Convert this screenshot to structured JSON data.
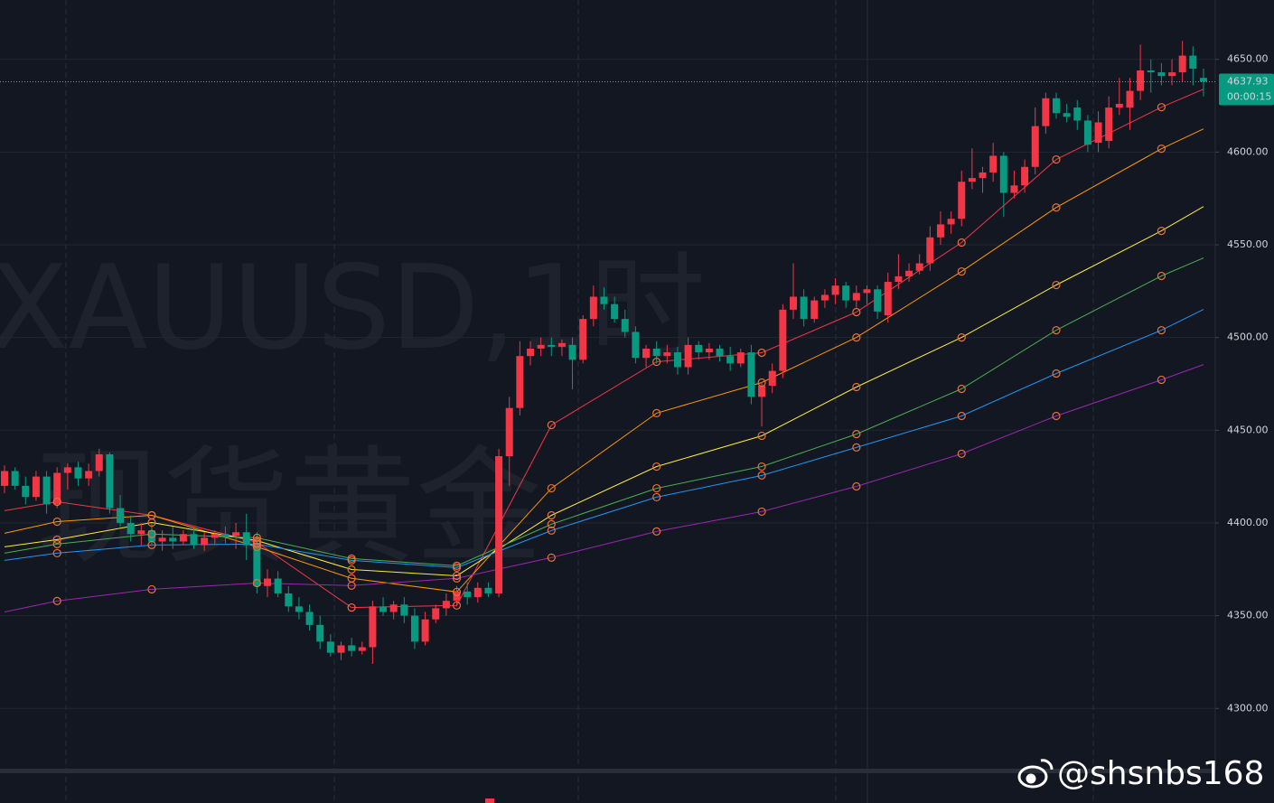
{
  "chart_data": {
    "type": "candlestick",
    "watermark": [
      "XAUUSD,1时",
      "现货黄金"
    ],
    "up_color": "#f23645",
    "down_color": "#089981",
    "marker_color": "#e8703a",
    "ylim": [
      4267,
      4682
    ],
    "yticks": [
      {
        "value": 4650,
        "label": "4650.00"
      },
      {
        "value": 4600,
        "label": "4600.00"
      },
      {
        "value": 4550,
        "label": "4550.00"
      },
      {
        "value": 4500,
        "label": "4500.00"
      },
      {
        "value": 4450,
        "label": "4450.00"
      },
      {
        "value": 4400,
        "label": "4400.00"
      },
      {
        "value": 4350,
        "label": "4350.00"
      },
      {
        "value": 4300,
        "label": "4300.00"
      }
    ],
    "grid": true,
    "last_price": 4637.93,
    "countdown": "00:00:15",
    "open": [
      4420,
      4428,
      4420,
      4414,
      4425,
      4410,
      4427,
      4430,
      4424,
      4428,
      4437,
      4408,
      4400,
      4394,
      4396,
      4390,
      4392,
      4390,
      4394,
      4388,
      4392,
      4394,
      4393,
      4395,
      4388,
      4366,
      4370,
      4362,
      4355,
      4352,
      4345,
      4336,
      4330,
      4334,
      4331,
      4333,
      4355,
      4352,
      4356,
      4350,
      4336,
      4348,
      4354,
      4358,
      4363,
      4360,
      4365,
      4362,
      4436,
      4462,
      4490,
      4494,
      4496,
      4495,
      4496,
      4488,
      4510,
      4522,
      4518,
      4510,
      4503,
      4489,
      4494,
      4490,
      4492,
      4484,
      4496,
      4492,
      4494,
      4490,
      4486,
      4492,
      4468,
      4474,
      4482,
      4515,
      4522,
      4510,
      4520,
      4523,
      4528,
      4520,
      4524,
      4526,
      4512,
      4530,
      4533,
      4536,
      4540,
      4554,
      4561,
      4564,
      4584,
      4586,
      4589,
      4598,
      4578,
      4582,
      4592,
      4614,
      4629,
      4621,
      4624,
      4617,
      4605,
      4606,
      4624,
      4624,
      4633,
      4644,
      4643,
      4641,
      4643,
      4652,
      4640
    ],
    "high": [
      4431,
      4430,
      4425,
      4428,
      4428,
      4430,
      4432,
      4433,
      4432,
      4440,
      4438,
      4415,
      4404,
      4400,
      4400,
      4396,
      4398,
      4396,
      4397,
      4395,
      4396,
      4398,
      4400,
      4405,
      4395,
      4375,
      4374,
      4366,
      4360,
      4356,
      4350,
      4340,
      4336,
      4338,
      4336,
      4358,
      4360,
      4358,
      4360,
      4354,
      4352,
      4356,
      4362,
      4366,
      4368,
      4368,
      4368,
      4440,
      4468,
      4498,
      4498,
      4500,
      4500,
      4499,
      4500,
      4512,
      4528,
      4527,
      4522,
      4515,
      4506,
      4496,
      4498,
      4496,
      4495,
      4500,
      4498,
      4497,
      4496,
      4495,
      4494,
      4496,
      4476,
      4486,
      4518,
      4540,
      4526,
      4522,
      4526,
      4532,
      4530,
      4528,
      4528,
      4528,
      4535,
      4545,
      4540,
      4545,
      4560,
      4568,
      4568,
      4590,
      4602,
      4592,
      4605,
      4600,
      4590,
      4596,
      4624,
      4632,
      4632,
      4626,
      4628,
      4620,
      4622,
      4630,
      4640,
      4640,
      4658,
      4650,
      4648,
      4650,
      4660,
      4657,
      4645
    ],
    "low": [
      4416,
      4418,
      4410,
      4412,
      4405,
      4408,
      4418,
      4420,
      4420,
      4425,
      4405,
      4398,
      4390,
      4388,
      4388,
      4385,
      4386,
      4388,
      4386,
      4385,
      4388,
      4389,
      4386,
      4380,
      4362,
      4360,
      4360,
      4352,
      4348,
      4342,
      4332,
      4328,
      4326,
      4328,
      4329,
      4324,
      4350,
      4348,
      4346,
      4332,
      4334,
      4346,
      4350,
      4355,
      4356,
      4357,
      4360,
      4360,
      4420,
      4458,
      4485,
      4490,
      4490,
      4490,
      4472,
      4486,
      4506,
      4515,
      4508,
      4500,
      4486,
      4484,
      4486,
      4486,
      4480,
      4480,
      4488,
      4488,
      4487,
      4482,
      4484,
      4464,
      4452,
      4470,
      4478,
      4510,
      4506,
      4508,
      4516,
      4518,
      4516,
      4516,
      4518,
      4510,
      4508,
      4526,
      4530,
      4534,
      4536,
      4550,
      4556,
      4560,
      4580,
      4578,
      4584,
      4565,
      4575,
      4578,
      4588,
      4610,
      4618,
      4616,
      4612,
      4600,
      4600,
      4602,
      4620,
      4612,
      4628,
      4632,
      4636,
      4636,
      4638,
      4636,
      4630
    ],
    "close": [
      4428,
      4420,
      4414,
      4425,
      4410,
      4427,
      4430,
      4424,
      4428,
      4437,
      4408,
      4400,
      4394,
      4396,
      4390,
      4392,
      4390,
      4394,
      4388,
      4392,
      4394,
      4393,
      4395,
      4388,
      4366,
      4370,
      4362,
      4355,
      4352,
      4345,
      4336,
      4330,
      4334,
      4331,
      4333,
      4355,
      4352,
      4356,
      4350,
      4336,
      4348,
      4354,
      4358,
      4363,
      4360,
      4365,
      4362,
      4436,
      4462,
      4490,
      4494,
      4496,
      4495,
      4497,
      4488,
      4510,
      4522,
      4518,
      4510,
      4503,
      4489,
      4494,
      4490,
      4492,
      4484,
      4496,
      4492,
      4494,
      4490,
      4486,
      4492,
      4468,
      4474,
      4482,
      4515,
      4522,
      4510,
      4520,
      4523,
      4528,
      4520,
      4524,
      4526,
      4514,
      4530,
      4533,
      4536,
      4540,
      4554,
      4561,
      4564,
      4584,
      4586,
      4589,
      4598,
      4578,
      4582,
      4592,
      4614,
      4629,
      4621,
      4619,
      4617,
      4604,
      4616,
      4624,
      4626,
      4633,
      4644,
      4643,
      4641,
      4643,
      4652,
      4645,
      4637.93
    ],
    "overlays": [
      {
        "color": "#f23645",
        "x": [
          0,
          5,
          14,
          24,
          33,
          43,
          52,
          62,
          72,
          81,
          91,
          100,
          110,
          114
        ],
        "values": [
          4406.6,
          4411.4,
          4404.1,
          4389.5,
          4354.4,
          4355.5,
          4452.8,
          4486.9,
          4491.8,
          4513.7,
          4551.2,
          4596.0,
          4624.2,
          4633.9
        ]
      },
      {
        "color": "#ff9800",
        "x": [
          0,
          5,
          14,
          24,
          33,
          43,
          52,
          62,
          72,
          81,
          91,
          100,
          110,
          114
        ],
        "values": [
          4394.4,
          4400.7,
          4404.1,
          4387.1,
          4370.1,
          4362.8,
          4418.7,
          4459.2,
          4475.7,
          4500.0,
          4535.6,
          4570.1,
          4601.8,
          4612.5
        ]
      },
      {
        "color": "#ffeb3b",
        "x": [
          0,
          5,
          14,
          24,
          33,
          43,
          52,
          62,
          72,
          81,
          91,
          100,
          110,
          114
        ],
        "values": [
          4387.1,
          4391.0,
          4400.2,
          4390.5,
          4374.9,
          4371.5,
          4404.1,
          4430.4,
          4447.0,
          4473.3,
          4500.0,
          4528.3,
          4557.5,
          4570.6
        ]
      },
      {
        "color": "#4caf50",
        "x": [
          0,
          5,
          14,
          24,
          33,
          43,
          52,
          62,
          72,
          81,
          91,
          100,
          110,
          114
        ],
        "values": [
          4383.7,
          4388.6,
          4394.0,
          4392.0,
          4380.8,
          4376.9,
          4399.3,
          4418.7,
          4430.4,
          4447.9,
          4472.3,
          4503.9,
          4533.2,
          4542.9
        ]
      },
      {
        "color": "#2196f3",
        "x": [
          0,
          5,
          14,
          24,
          33,
          43,
          52,
          62,
          72,
          81,
          91,
          100,
          110,
          114
        ],
        "values": [
          4379.8,
          4383.7,
          4388.1,
          4388.6,
          4379.8,
          4375.9,
          4395.9,
          4413.9,
          4425.6,
          4440.7,
          4457.7,
          4480.6,
          4503.9,
          4515.1
        ]
      },
      {
        "color": "#9c27b0",
        "x": [
          0,
          5,
          14,
          24,
          33,
          43,
          52,
          62,
          72,
          81,
          91,
          100,
          110,
          114
        ],
        "values": [
          4352.0,
          4357.9,
          4364.2,
          4367.6,
          4366.2,
          4370.1,
          4381.3,
          4395.4,
          4406.1,
          4419.7,
          4437.3,
          4457.7,
          4477.2,
          4485.4
        ]
      }
    ],
    "credit": "@shsnbs168"
  }
}
